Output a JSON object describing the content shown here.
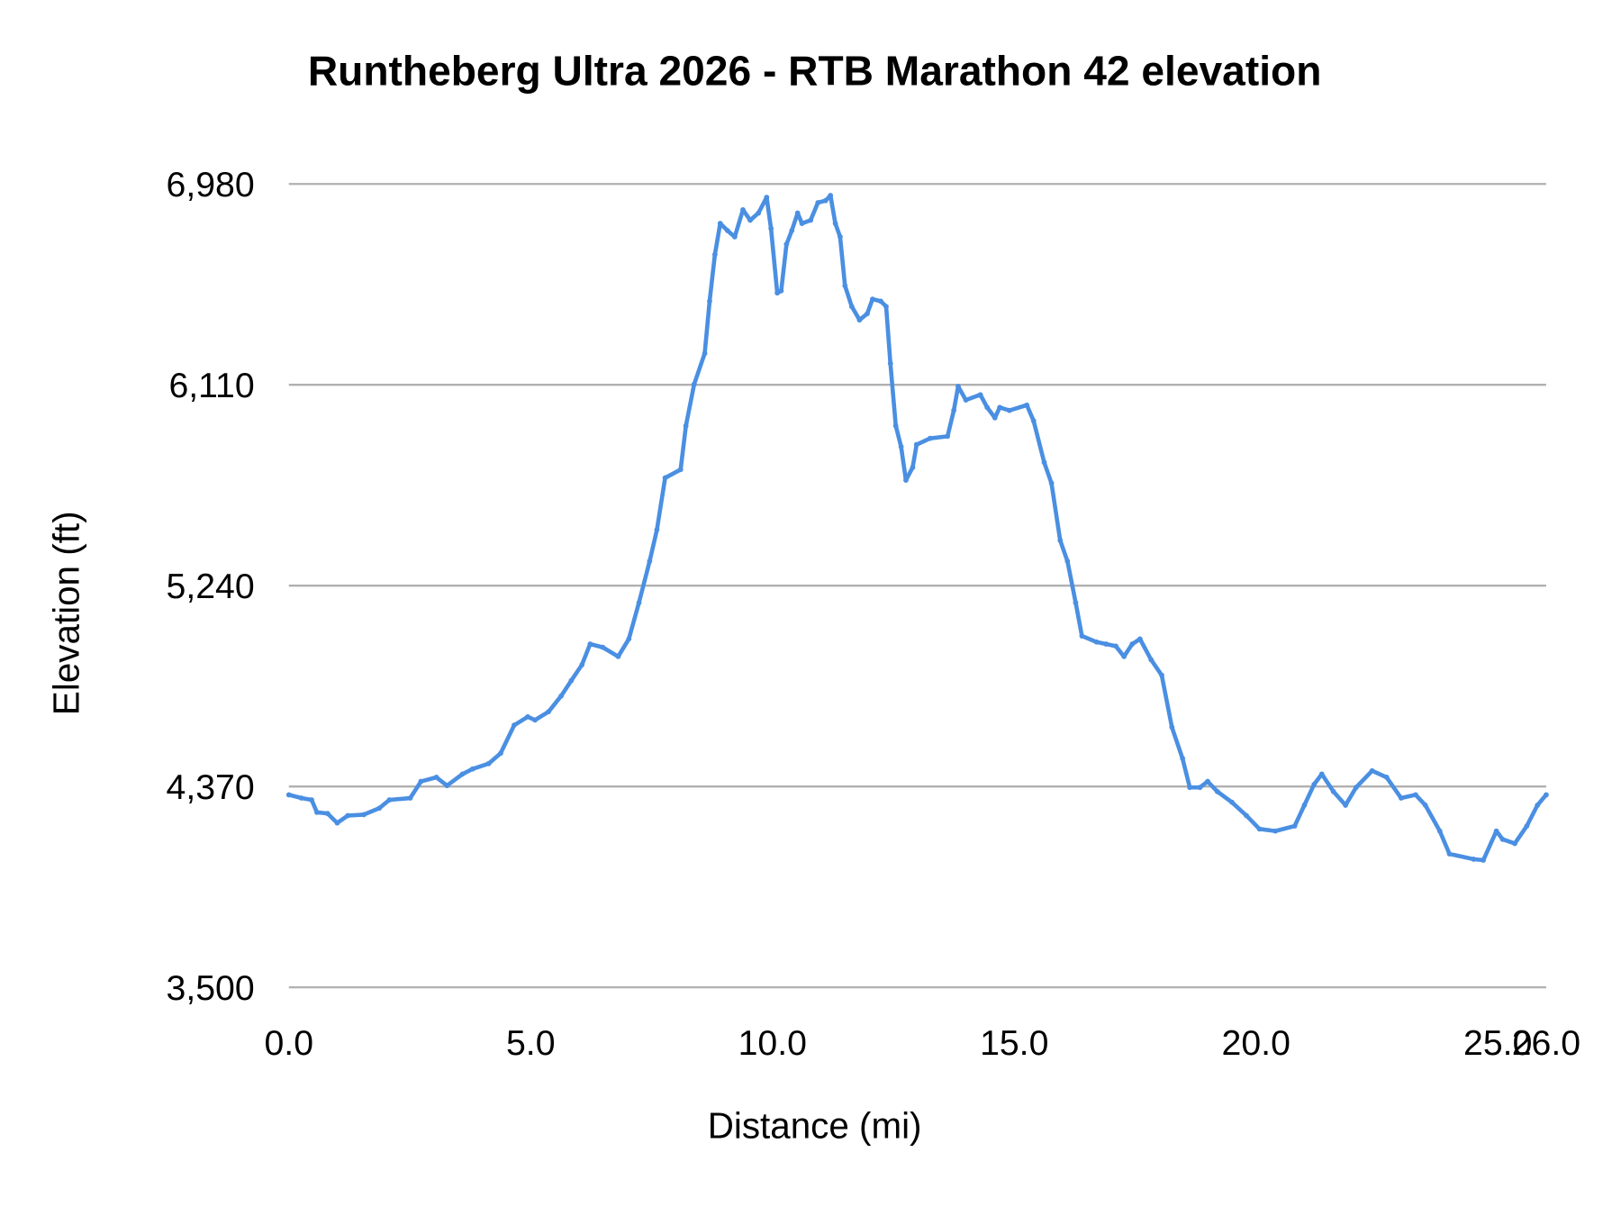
{
  "chart_data": {
    "type": "line",
    "title": "Runtheberg Ultra 2026 - RTB Marathon 42 elevation",
    "xlabel": "Distance (mi)",
    "ylabel": "Elevation (ft)",
    "xlim": [
      0,
      26
    ],
    "ylim": [
      3500,
      6980
    ],
    "x_ticks": [
      0,
      5,
      10,
      15,
      20,
      25,
      26
    ],
    "x_tick_labels": [
      "0.0",
      "5.0",
      "10.0",
      "15.0",
      "20.0",
      "25.0",
      "26.0"
    ],
    "y_ticks": [
      3500,
      4370,
      5240,
      6110,
      6980
    ],
    "y_tick_labels": [
      "3,500",
      "4,370",
      "5,240",
      "6,110",
      "6,980"
    ],
    "grid": "horizontal",
    "legend": "none",
    "series_color": "#4a8fe2",
    "x": [
      0,
      0.26,
      0.47,
      0.58,
      0.8,
      1.0,
      1.22,
      1.55,
      1.87,
      2.08,
      2.51,
      2.73,
      3.05,
      3.27,
      3.59,
      3.8,
      4.13,
      4.38,
      4.66,
      4.94,
      5.09,
      5.37,
      5.63,
      5.84,
      6.06,
      6.23,
      6.49,
      6.81,
      7.03,
      7.24,
      7.46,
      7.61,
      7.78,
      8.1,
      8.21,
      8.38,
      8.6,
      8.7,
      8.81,
      8.92,
      9.07,
      9.22,
      9.39,
      9.54,
      9.71,
      9.88,
      9.97,
      10.1,
      10.18,
      10.29,
      10.4,
      10.52,
      10.61,
      10.79,
      10.94,
      11.1,
      11.2,
      11.3,
      11.4,
      11.5,
      11.64,
      11.8,
      11.96,
      12.07,
      12.24,
      12.35,
      12.44,
      12.55,
      12.66,
      12.76,
      12.9,
      12.98,
      13.26,
      13.62,
      13.75,
      13.84,
      14.0,
      14.3,
      14.44,
      14.6,
      14.7,
      14.9,
      15.26,
      15.4,
      15.62,
      15.77,
      15.95,
      16.1,
      16.27,
      16.4,
      16.7,
      16.9,
      17.1,
      17.27,
      17.44,
      17.6,
      17.83,
      18.05,
      18.26,
      18.48,
      18.63,
      18.84,
      19.0,
      19.2,
      19.5,
      19.8,
      20.07,
      20.4,
      20.8,
      21.0,
      21.2,
      21.36,
      21.6,
      21.85,
      22.07,
      22.4,
      22.7,
      23.0,
      23.3,
      23.5,
      23.8,
      24.0,
      24.5,
      24.7,
      24.97,
      25.1,
      25.35,
      25.6,
      25.82,
      26.0
    ],
    "y": [
      4334,
      4320,
      4312,
      4258,
      4253,
      4212,
      4244,
      4248,
      4276,
      4312,
      4320,
      4392,
      4410,
      4374,
      4424,
      4446,
      4469,
      4514,
      4636,
      4672,
      4658,
      4694,
      4762,
      4829,
      4897,
      4987,
      4973,
      4933,
      5009,
      5166,
      5346,
      5482,
      5707,
      5743,
      5932,
      6112,
      6246,
      6472,
      6674,
      6809,
      6778,
      6751,
      6868,
      6823,
      6854,
      6922,
      6787,
      6508,
      6517,
      6719,
      6778,
      6854,
      6809,
      6823,
      6899,
      6908,
      6930,
      6809,
      6751,
      6539,
      6449,
      6391,
      6418,
      6481,
      6472,
      6449,
      6202,
      5932,
      5842,
      5697,
      5752,
      5851,
      5878,
      5887,
      5999,
      6103,
      6044,
      6067,
      6012,
      5967,
      6012,
      5999,
      6022,
      5954,
      5774,
      5684,
      5436,
      5346,
      5166,
      5022,
      4996,
      4987,
      4978,
      4933,
      4987,
      5009,
      4919,
      4852,
      4627,
      4492,
      4366,
      4366,
      4392,
      4348,
      4302,
      4244,
      4186,
      4177,
      4199,
      4289,
      4379,
      4424,
      4348,
      4289,
      4366,
      4438,
      4410,
      4320,
      4334,
      4289,
      4177,
      4078,
      4055,
      4051,
      4177,
      4141,
      4123,
      4199,
      4289,
      4334
    ]
  }
}
